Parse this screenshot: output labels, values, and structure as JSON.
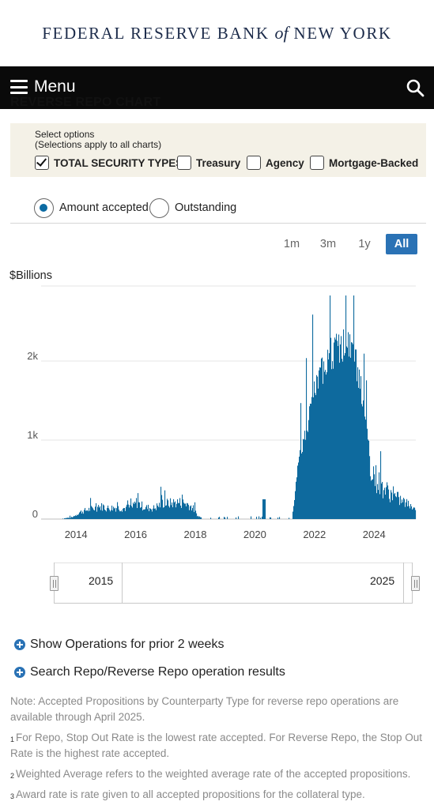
{
  "brand": {
    "part1": "FEDERAL RESERVE BANK ",
    "part2": "of",
    "part3": " NEW YORK"
  },
  "navbar": {
    "menu_label": "Menu",
    "search_icon": "search-icon",
    "menu_icon": "hamburger-icon"
  },
  "page": {
    "section_title": "REVERSE REPO CHART"
  },
  "options": {
    "title": "Select options",
    "subtitle": "(Selections apply to all charts)",
    "checkboxes": [
      {
        "label": "TOTAL SECURITY TYPES",
        "checked": true
      },
      {
        "label": "Treasury",
        "checked": false
      },
      {
        "label": "Agency",
        "checked": false
      },
      {
        "label": "Mortgage-Backed",
        "checked": false
      }
    ]
  },
  "view": {
    "radios": [
      {
        "label": "Amount accepted",
        "selected": true
      },
      {
        "label": "Outstanding",
        "selected": false
      }
    ]
  },
  "range_buttons": [
    {
      "label": "1m",
      "active": false
    },
    {
      "label": "3m",
      "active": false
    },
    {
      "label": "1y",
      "active": false
    },
    {
      "label": "All",
      "active": true
    }
  ],
  "chart_data": {
    "type": "bar",
    "title": "",
    "ylabel": "$Billions",
    "ylim": [
      0,
      3000
    ],
    "y_ticks": [
      "0",
      "1k",
      "2k"
    ],
    "y_tick_values": [
      0,
      1000,
      2000
    ],
    "x_ticks": [
      "2014",
      "2016",
      "2018",
      "2020",
      "2022",
      "2024"
    ],
    "x_tick_values": [
      2014,
      2016,
      2018,
      2020,
      2022,
      2024
    ],
    "xlim": [
      2013.2,
      2025.4
    ],
    "grid": true,
    "color": "#0e6a9e",
    "series": [
      {
        "values": [
          [
            2013.5,
            5
          ],
          [
            2013.9,
            30
          ],
          [
            2014.1,
            100
          ],
          [
            2014.4,
            140
          ],
          [
            2014.7,
            170
          ],
          [
            2014.9,
            190
          ],
          [
            2015.0,
            160
          ],
          [
            2015.3,
            170
          ],
          [
            2015.6,
            160
          ],
          [
            2015.9,
            180
          ],
          [
            2016.0,
            250
          ],
          [
            2016.3,
            170
          ],
          [
            2016.6,
            160
          ],
          [
            2016.9,
            240
          ],
          [
            2017.1,
            230
          ],
          [
            2017.4,
            250
          ],
          [
            2017.7,
            230
          ],
          [
            2017.9,
            170
          ],
          [
            2018.1,
            30
          ],
          [
            2018.4,
            5
          ],
          [
            2019.0,
            5
          ],
          [
            2019.5,
            5
          ],
          [
            2020.0,
            5
          ],
          [
            2020.3,
            120
          ],
          [
            2020.6,
            5
          ],
          [
            2021.2,
            5
          ],
          [
            2021.3,
            200
          ],
          [
            2021.45,
            800
          ],
          [
            2021.6,
            1000
          ],
          [
            2021.75,
            1200
          ],
          [
            2021.9,
            1550
          ],
          [
            2022.0,
            1700
          ],
          [
            2022.2,
            1900
          ],
          [
            2022.4,
            2150
          ],
          [
            2022.6,
            2200
          ],
          [
            2022.8,
            2250
          ],
          [
            2023.0,
            2300
          ],
          [
            2023.2,
            2250
          ],
          [
            2023.4,
            2050
          ],
          [
            2023.55,
            1700
          ],
          [
            2023.7,
            1200
          ],
          [
            2023.85,
            900
          ],
          [
            2024.0,
            650
          ],
          [
            2024.2,
            500
          ],
          [
            2024.4,
            430
          ],
          [
            2024.6,
            350
          ],
          [
            2024.8,
            300
          ],
          [
            2025.0,
            250
          ],
          [
            2025.2,
            200
          ],
          [
            2025.35,
            150
          ]
        ]
      }
    ]
  },
  "navigator": {
    "left_year": "2015",
    "right_year": "2025"
  },
  "links": [
    {
      "label": "Show Operations for prior 2 weeks",
      "icon": "plus-circle-icon"
    },
    {
      "label": "Search Repo/Reverse Repo operation results",
      "icon": "plus-circle-icon"
    }
  ],
  "notes": {
    "note": "Note: Accepted Propositions by Counterparty Type for reverse repo operations are available through April 2025.",
    "fn1_mark": "1",
    "fn1": "For Repo, Stop Out Rate is the lowest rate accepted. For Reverse Repo, the Stop Out Rate is the highest rate accepted.",
    "fn2_mark": "2",
    "fn2": "Weighted Average refers to the weighted average rate of the accepted propositions.",
    "fn3_mark": "3",
    "fn3": "Award rate is rate given to all accepted propositions for the collateral type."
  }
}
